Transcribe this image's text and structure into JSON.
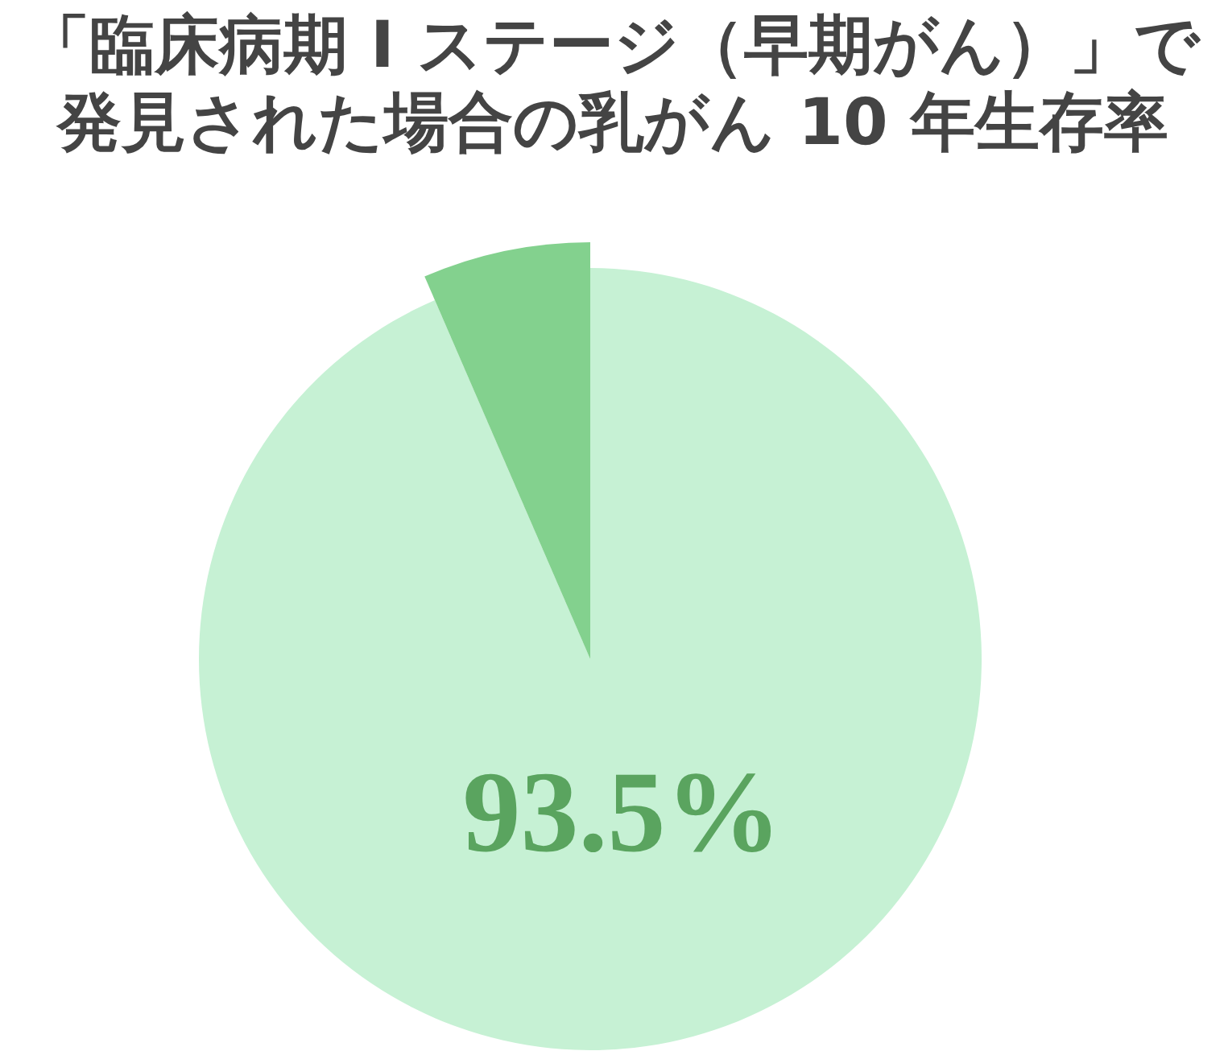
{
  "chart_data": {
    "type": "pie",
    "title": "「臨床病期 I ステージ（早期がん）」で発見された場合の乳がん 10 年生存率",
    "categories": [
      null,
      null
    ],
    "values": [
      93.5,
      6.5
    ],
    "colors": [
      "#c6f1d4",
      "#83d18e"
    ],
    "value_labels": [
      "93.5%",
      null
    ]
  }
}
